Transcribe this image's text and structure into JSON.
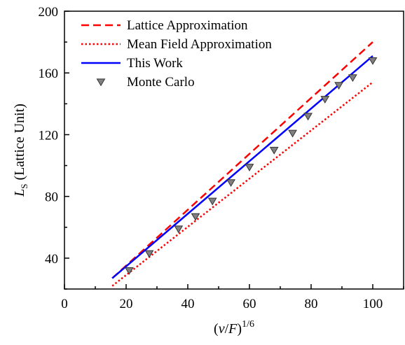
{
  "chart_data": {
    "type": "line",
    "title": "",
    "xlabel": {
      "open": "(",
      "var1": "ν",
      "sep": "/",
      "var2": "F",
      "close": ")",
      "sup": "1/6"
    },
    "ylabel": {
      "main": "L",
      "sub": "S",
      "rest": " (Lattice Unit)"
    },
    "xlim": [
      0,
      110
    ],
    "ylim": [
      20,
      200
    ],
    "xticks": [
      0,
      20,
      40,
      60,
      80,
      100
    ],
    "yticks": [
      40,
      80,
      120,
      160,
      200
    ],
    "legend_position": "top-left",
    "series": [
      {
        "name": "Lattice Approximation",
        "kind": "line",
        "style": "dashed",
        "color": "#ff0000",
        "x": [
          15.5,
          100
        ],
        "y": [
          27,
          180
        ]
      },
      {
        "name": "Mean Field Approximation",
        "kind": "line",
        "style": "dotted",
        "color": "#ff0000",
        "x": [
          15.5,
          100
        ],
        "y": [
          22,
          154
        ]
      },
      {
        "name": "This Work",
        "kind": "line",
        "style": "solid",
        "color": "#0000ff",
        "x": [
          15.5,
          100
        ],
        "y": [
          27,
          171
        ]
      },
      {
        "name": "Monte Carlo",
        "kind": "scatter",
        "marker": "triangle-down",
        "color": "#808080",
        "x": [
          21,
          27.5,
          37,
          42.5,
          48,
          54,
          60,
          68,
          74,
          79,
          84.5,
          89,
          93.5,
          100
        ],
        "y": [
          32,
          43,
          59,
          67,
          77,
          89,
          99,
          110,
          121,
          132,
          143,
          152,
          157,
          168
        ]
      }
    ]
  }
}
